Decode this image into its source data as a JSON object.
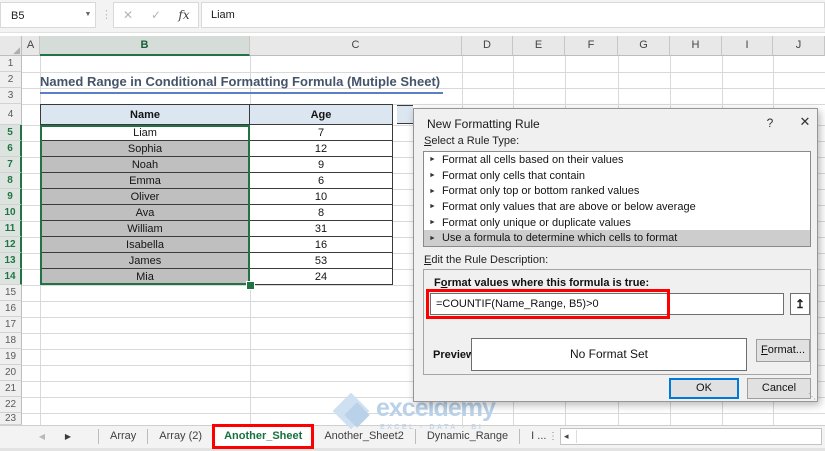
{
  "formula_bar": {
    "name_box_value": "B5",
    "formula_value": "Liam"
  },
  "icons": {
    "name_box_dropdown": "▼",
    "separator_dots": "⋮",
    "cancel": "✕",
    "enter": "✓",
    "function": "fx",
    "select_all": "◢",
    "dialog_help": "?",
    "dialog_close": "✕",
    "rule_item_arrow": "►",
    "collapse_dialog": "↥",
    "tab_prev": "◀",
    "tab_next": "▶",
    "add_sheet": "⊕",
    "tab_grip": "⋮",
    "scroll_left": "◂",
    "resize_grip": "⋱"
  },
  "columns": [
    "A",
    "B",
    "C",
    "D",
    "E",
    "F",
    "G",
    "H",
    "I",
    "J"
  ],
  "row_numbers": [
    "1",
    "2",
    "3",
    "4",
    "5",
    "6",
    "7",
    "8",
    "9",
    "10",
    "11",
    "12",
    "13",
    "14",
    "15",
    "16",
    "17",
    "18",
    "19",
    "20",
    "21",
    "22",
    "23"
  ],
  "sheet_title": "Named Range in Conditional Formatting Formula (Mutiple Sheet)",
  "table": {
    "name_header": "Name",
    "age_header": "Age",
    "rows": [
      {
        "name": "Liam",
        "age": "7"
      },
      {
        "name": "Sophia",
        "age": "12"
      },
      {
        "name": "Noah",
        "age": "9"
      },
      {
        "name": "Emma",
        "age": "6"
      },
      {
        "name": "Oliver",
        "age": "10"
      },
      {
        "name": "Ava",
        "age": "8"
      },
      {
        "name": "William",
        "age": "31"
      },
      {
        "name": "Isabella",
        "age": "16"
      },
      {
        "name": "James",
        "age": "53"
      },
      {
        "name": "Mia",
        "age": "24"
      }
    ]
  },
  "dialog": {
    "title": "New Formatting Rule",
    "select_rule_label": {
      "pre": "",
      "u": "S",
      "post": "elect a Rule Type:"
    },
    "rule_types": [
      "Format all cells based on their values",
      "Format only cells that contain",
      "Format only top or bottom ranked values",
      "Format only values that are above or below average",
      "Format only unique or duplicate values",
      "Use a formula to determine which cells to format"
    ],
    "selected_rule_index": 5,
    "edit_desc_label": {
      "pre": "",
      "u": "E",
      "post": "dit the Rule Description:"
    },
    "formula_label": {
      "pre": "F",
      "u": "o",
      "post": "rmat values where this formula is true:"
    },
    "formula_value": "=COUNTIF(Name_Range, B5)>0",
    "preview_label": "Preview:",
    "preview_value": "No Format Set",
    "format_button": {
      "pre": "",
      "u": "F",
      "post": "ormat..."
    },
    "ok_button": "OK",
    "cancel_button": "Cancel"
  },
  "sheet_tabs": {
    "tabs": [
      "Array",
      "Array (2)",
      "Another_Sheet",
      "Another_Sheet2",
      "Dynamic_Range",
      "I ..."
    ],
    "active_tab": "Another_Sheet"
  },
  "watermark": {
    "brand": "exceldemy",
    "tagline": "EXCEL - DATA - BI"
  },
  "colors": {
    "excel_green": "#217346",
    "conditional_fill": "#bfbfbf",
    "table_header_fill": "#dce6f1",
    "highlight_red": "#ff0000",
    "title_text": "#44546a",
    "focus_blue": "#0078d7"
  }
}
